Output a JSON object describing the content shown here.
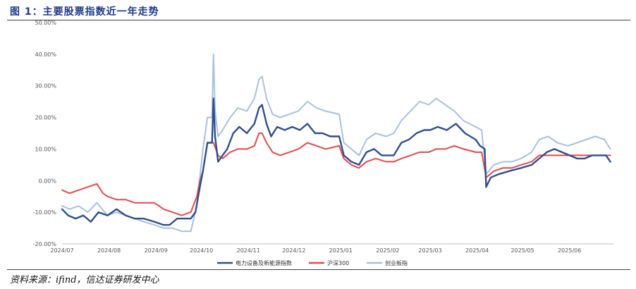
{
  "title": "图 1：主要股票指数近一年走势",
  "source": "资料来源：ifind，信达证券研发中心",
  "chart_data": {
    "type": "line",
    "ylim": [
      -0.2,
      0.5
    ],
    "y_ticks": [
      -0.2,
      -0.1,
      0.0,
      0.1,
      0.2,
      0.3,
      0.4,
      0.5
    ],
    "y_tick_labels": [
      "-20.00%",
      "-10.00%",
      "0.00%",
      "10.00%",
      "20.00%",
      "30.00%",
      "40.00%",
      "50.00%"
    ],
    "x_tick_labels": [
      "2024/07",
      "2024/08",
      "2024/09",
      "2024/10",
      "2024/11",
      "2024/12",
      "2025/01",
      "2025/02",
      "2025/03",
      "2025/04",
      "2025/05",
      "2025/06"
    ],
    "xlim": [
      "2024-07-01",
      "2025-06-30"
    ],
    "grid": false,
    "legend_position": "bottom",
    "series": [
      {
        "name": "电力设备及新能源指数",
        "color": "#2f4f8f",
        "points": [
          [
            "2024-07-01",
            -0.09
          ],
          [
            "2024-07-05",
            -0.11
          ],
          [
            "2024-07-10",
            -0.12
          ],
          [
            "2024-07-15",
            -0.11
          ],
          [
            "2024-07-20",
            -0.13
          ],
          [
            "2024-07-25",
            -0.1
          ],
          [
            "2024-07-31",
            -0.11
          ],
          [
            "2024-08-06",
            -0.09
          ],
          [
            "2024-08-12",
            -0.11
          ],
          [
            "2024-08-18",
            -0.12
          ],
          [
            "2024-08-24",
            -0.12
          ],
          [
            "2024-08-31",
            -0.13
          ],
          [
            "2024-09-06",
            -0.14
          ],
          [
            "2024-09-10",
            -0.14
          ],
          [
            "2024-09-15",
            -0.12
          ],
          [
            "2024-09-20",
            -0.12
          ],
          [
            "2024-09-24",
            -0.12
          ],
          [
            "2024-09-27",
            -0.1
          ],
          [
            "2024-09-30",
            -0.02
          ],
          [
            "2024-10-02",
            0.03
          ],
          [
            "2024-10-05",
            0.12
          ],
          [
            "2024-10-08",
            0.12
          ],
          [
            "2024-10-09",
            0.26
          ],
          [
            "2024-10-10",
            0.14
          ],
          [
            "2024-10-12",
            0.06
          ],
          [
            "2024-10-15",
            0.08
          ],
          [
            "2024-10-18",
            0.1
          ],
          [
            "2024-10-22",
            0.15
          ],
          [
            "2024-10-26",
            0.17
          ],
          [
            "2024-10-31",
            0.15
          ],
          [
            "2024-11-05",
            0.18
          ],
          [
            "2024-11-08",
            0.23
          ],
          [
            "2024-11-10",
            0.24
          ],
          [
            "2024-11-13",
            0.18
          ],
          [
            "2024-11-16",
            0.14
          ],
          [
            "2024-11-20",
            0.17
          ],
          [
            "2024-11-25",
            0.16
          ],
          [
            "2024-11-30",
            0.17
          ],
          [
            "2024-12-05",
            0.16
          ],
          [
            "2024-12-10",
            0.18
          ],
          [
            "2024-12-15",
            0.15
          ],
          [
            "2024-12-20",
            0.15
          ],
          [
            "2024-12-25",
            0.14
          ],
          [
            "2024-12-31",
            0.14
          ],
          [
            "2025-01-03",
            0.08
          ],
          [
            "2025-01-08",
            0.06
          ],
          [
            "2025-01-13",
            0.05
          ],
          [
            "2025-01-18",
            0.09
          ],
          [
            "2025-01-23",
            0.1
          ],
          [
            "2025-01-28",
            0.08
          ],
          [
            "2025-02-05",
            0.08
          ],
          [
            "2025-02-10",
            0.12
          ],
          [
            "2025-02-15",
            0.13
          ],
          [
            "2025-02-20",
            0.15
          ],
          [
            "2025-02-25",
            0.16
          ],
          [
            "2025-03-01",
            0.16
          ],
          [
            "2025-03-06",
            0.17
          ],
          [
            "2025-03-12",
            0.16
          ],
          [
            "2025-03-18",
            0.18
          ],
          [
            "2025-03-24",
            0.15
          ],
          [
            "2025-03-31",
            0.13
          ],
          [
            "2025-04-03",
            0.11
          ],
          [
            "2025-04-06",
            0.1
          ],
          [
            "2025-04-07",
            -0.02
          ],
          [
            "2025-04-10",
            0.01
          ],
          [
            "2025-04-15",
            0.02
          ],
          [
            "2025-04-22",
            0.03
          ],
          [
            "2025-04-30",
            0.04
          ],
          [
            "2025-05-07",
            0.05
          ],
          [
            "2025-05-12",
            0.07
          ],
          [
            "2025-05-17",
            0.09
          ],
          [
            "2025-05-22",
            0.1
          ],
          [
            "2025-05-27",
            0.09
          ],
          [
            "2025-06-01",
            0.08
          ],
          [
            "2025-06-06",
            0.07
          ],
          [
            "2025-06-11",
            0.07
          ],
          [
            "2025-06-16",
            0.08
          ],
          [
            "2025-06-21",
            0.08
          ],
          [
            "2025-06-25",
            0.08
          ],
          [
            "2025-06-28",
            0.06
          ]
        ]
      },
      {
        "name": "沪深300",
        "color": "#e8484b",
        "points": [
          [
            "2024-07-01",
            -0.03
          ],
          [
            "2024-07-06",
            -0.04
          ],
          [
            "2024-07-12",
            -0.03
          ],
          [
            "2024-07-18",
            -0.02
          ],
          [
            "2024-07-24",
            -0.01
          ],
          [
            "2024-07-28",
            -0.04
          ],
          [
            "2024-07-31",
            -0.05
          ],
          [
            "2024-08-06",
            -0.06
          ],
          [
            "2024-08-12",
            -0.06
          ],
          [
            "2024-08-18",
            -0.07
          ],
          [
            "2024-08-24",
            -0.07
          ],
          [
            "2024-08-31",
            -0.07
          ],
          [
            "2024-09-06",
            -0.09
          ],
          [
            "2024-09-12",
            -0.1
          ],
          [
            "2024-09-18",
            -0.11
          ],
          [
            "2024-09-24",
            -0.1
          ],
          [
            "2024-09-28",
            -0.05
          ],
          [
            "2024-09-30",
            0.0
          ],
          [
            "2024-10-02",
            0.03
          ],
          [
            "2024-10-05",
            0.12
          ],
          [
            "2024-10-08",
            0.12
          ],
          [
            "2024-10-09",
            0.12
          ],
          [
            "2024-10-12",
            0.08
          ],
          [
            "2024-10-15",
            0.07
          ],
          [
            "2024-10-20",
            0.09
          ],
          [
            "2024-10-25",
            0.1
          ],
          [
            "2024-10-31",
            0.1
          ],
          [
            "2024-11-05",
            0.11
          ],
          [
            "2024-11-08",
            0.15
          ],
          [
            "2024-11-10",
            0.15
          ],
          [
            "2024-11-13",
            0.12
          ],
          [
            "2024-11-17",
            0.09
          ],
          [
            "2024-11-22",
            0.08
          ],
          [
            "2024-11-28",
            0.09
          ],
          [
            "2024-12-04",
            0.1
          ],
          [
            "2024-12-10",
            0.12
          ],
          [
            "2024-12-16",
            0.11
          ],
          [
            "2024-12-22",
            0.1
          ],
          [
            "2024-12-31",
            0.11
          ],
          [
            "2025-01-03",
            0.07
          ],
          [
            "2025-01-08",
            0.05
          ],
          [
            "2025-01-13",
            0.04
          ],
          [
            "2025-01-18",
            0.06
          ],
          [
            "2025-01-24",
            0.07
          ],
          [
            "2025-01-31",
            0.06
          ],
          [
            "2025-02-05",
            0.06
          ],
          [
            "2025-02-10",
            0.07
          ],
          [
            "2025-02-16",
            0.08
          ],
          [
            "2025-02-22",
            0.09
          ],
          [
            "2025-02-28",
            0.09
          ],
          [
            "2025-03-05",
            0.1
          ],
          [
            "2025-03-11",
            0.1
          ],
          [
            "2025-03-17",
            0.11
          ],
          [
            "2025-03-23",
            0.1
          ],
          [
            "2025-03-31",
            0.09
          ],
          [
            "2025-04-04",
            0.09
          ],
          [
            "2025-04-07",
            0.01
          ],
          [
            "2025-04-12",
            0.03
          ],
          [
            "2025-04-18",
            0.04
          ],
          [
            "2025-04-24",
            0.04
          ],
          [
            "2025-04-30",
            0.05
          ],
          [
            "2025-05-07",
            0.06
          ],
          [
            "2025-05-12",
            0.08
          ],
          [
            "2025-05-18",
            0.08
          ],
          [
            "2025-05-24",
            0.08
          ],
          [
            "2025-05-31",
            0.08
          ],
          [
            "2025-06-06",
            0.08
          ],
          [
            "2025-06-12",
            0.08
          ],
          [
            "2025-06-18",
            0.08
          ],
          [
            "2025-06-24",
            0.08
          ],
          [
            "2025-06-28",
            0.08
          ]
        ]
      },
      {
        "name": "创业板指",
        "color": "#a9c0e3",
        "points": [
          [
            "2024-07-01",
            -0.08
          ],
          [
            "2024-07-06",
            -0.09
          ],
          [
            "2024-07-12",
            -0.08
          ],
          [
            "2024-07-18",
            -0.1
          ],
          [
            "2024-07-24",
            -0.07
          ],
          [
            "2024-07-31",
            -0.11
          ],
          [
            "2024-08-06",
            -0.1
          ],
          [
            "2024-08-12",
            -0.11
          ],
          [
            "2024-08-18",
            -0.12
          ],
          [
            "2024-08-24",
            -0.13
          ],
          [
            "2024-08-31",
            -0.14
          ],
          [
            "2024-09-06",
            -0.15
          ],
          [
            "2024-09-12",
            -0.15
          ],
          [
            "2024-09-18",
            -0.16
          ],
          [
            "2024-09-24",
            -0.16
          ],
          [
            "2024-09-28",
            -0.08
          ],
          [
            "2024-09-30",
            0.01
          ],
          [
            "2024-10-02",
            0.1
          ],
          [
            "2024-10-05",
            0.2
          ],
          [
            "2024-10-08",
            0.2
          ],
          [
            "2024-10-09",
            0.4
          ],
          [
            "2024-10-10",
            0.22
          ],
          [
            "2024-10-12",
            0.14
          ],
          [
            "2024-10-15",
            0.16
          ],
          [
            "2024-10-20",
            0.2
          ],
          [
            "2024-10-25",
            0.23
          ],
          [
            "2024-10-31",
            0.22
          ],
          [
            "2024-11-05",
            0.26
          ],
          [
            "2024-11-08",
            0.32
          ],
          [
            "2024-11-10",
            0.33
          ],
          [
            "2024-11-13",
            0.26
          ],
          [
            "2024-11-17",
            0.21
          ],
          [
            "2024-11-22",
            0.2
          ],
          [
            "2024-11-28",
            0.21
          ],
          [
            "2024-12-04",
            0.22
          ],
          [
            "2024-12-10",
            0.25
          ],
          [
            "2024-12-16",
            0.23
          ],
          [
            "2024-12-22",
            0.22
          ],
          [
            "2024-12-31",
            0.21
          ],
          [
            "2025-01-03",
            0.12
          ],
          [
            "2025-01-08",
            0.1
          ],
          [
            "2025-01-13",
            0.08
          ],
          [
            "2025-01-18",
            0.13
          ],
          [
            "2025-01-24",
            0.15
          ],
          [
            "2025-01-31",
            0.14
          ],
          [
            "2025-02-05",
            0.15
          ],
          [
            "2025-02-10",
            0.19
          ],
          [
            "2025-02-16",
            0.22
          ],
          [
            "2025-02-22",
            0.25
          ],
          [
            "2025-02-28",
            0.24
          ],
          [
            "2025-03-05",
            0.26
          ],
          [
            "2025-03-11",
            0.24
          ],
          [
            "2025-03-17",
            0.22
          ],
          [
            "2025-03-23",
            0.19
          ],
          [
            "2025-03-31",
            0.17
          ],
          [
            "2025-04-04",
            0.16
          ],
          [
            "2025-04-07",
            0.02
          ],
          [
            "2025-04-12",
            0.05
          ],
          [
            "2025-04-18",
            0.06
          ],
          [
            "2025-04-24",
            0.06
          ],
          [
            "2025-04-30",
            0.07
          ],
          [
            "2025-05-07",
            0.09
          ],
          [
            "2025-05-12",
            0.13
          ],
          [
            "2025-05-18",
            0.14
          ],
          [
            "2025-05-24",
            0.12
          ],
          [
            "2025-05-31",
            0.11
          ],
          [
            "2025-06-06",
            0.12
          ],
          [
            "2025-06-12",
            0.13
          ],
          [
            "2025-06-18",
            0.14
          ],
          [
            "2025-06-24",
            0.13
          ],
          [
            "2025-06-28",
            0.1
          ]
        ]
      }
    ]
  }
}
